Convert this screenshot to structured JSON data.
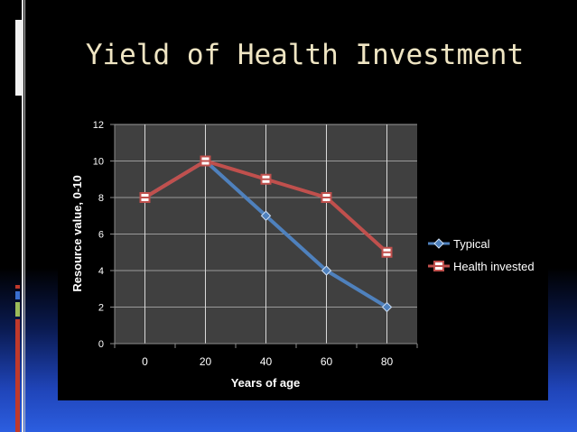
{
  "slide": {
    "title": "Yield of Health Investment"
  },
  "chart_data": {
    "type": "line",
    "categories": [
      "0",
      "20",
      "40",
      "60",
      "80"
    ],
    "series": [
      {
        "name": "Typical",
        "values": [
          8,
          10,
          7,
          4,
          2
        ],
        "color": "#4f81bd",
        "marker": "diamond"
      },
      {
        "name": "Health invested",
        "values": [
          8,
          10,
          9,
          8,
          5
        ],
        "color": "#c0504d",
        "marker": "square"
      }
    ],
    "xlabel": "Years of age",
    "ylabel": "Resource value, 0-10",
    "yticks": [
      "0",
      "2",
      "4",
      "6",
      "8",
      "10",
      "12"
    ],
    "ylim": [
      0,
      12
    ],
    "grid": true,
    "legend_position": "right",
    "plot_background": "#404040",
    "chart_background": "#000000"
  }
}
